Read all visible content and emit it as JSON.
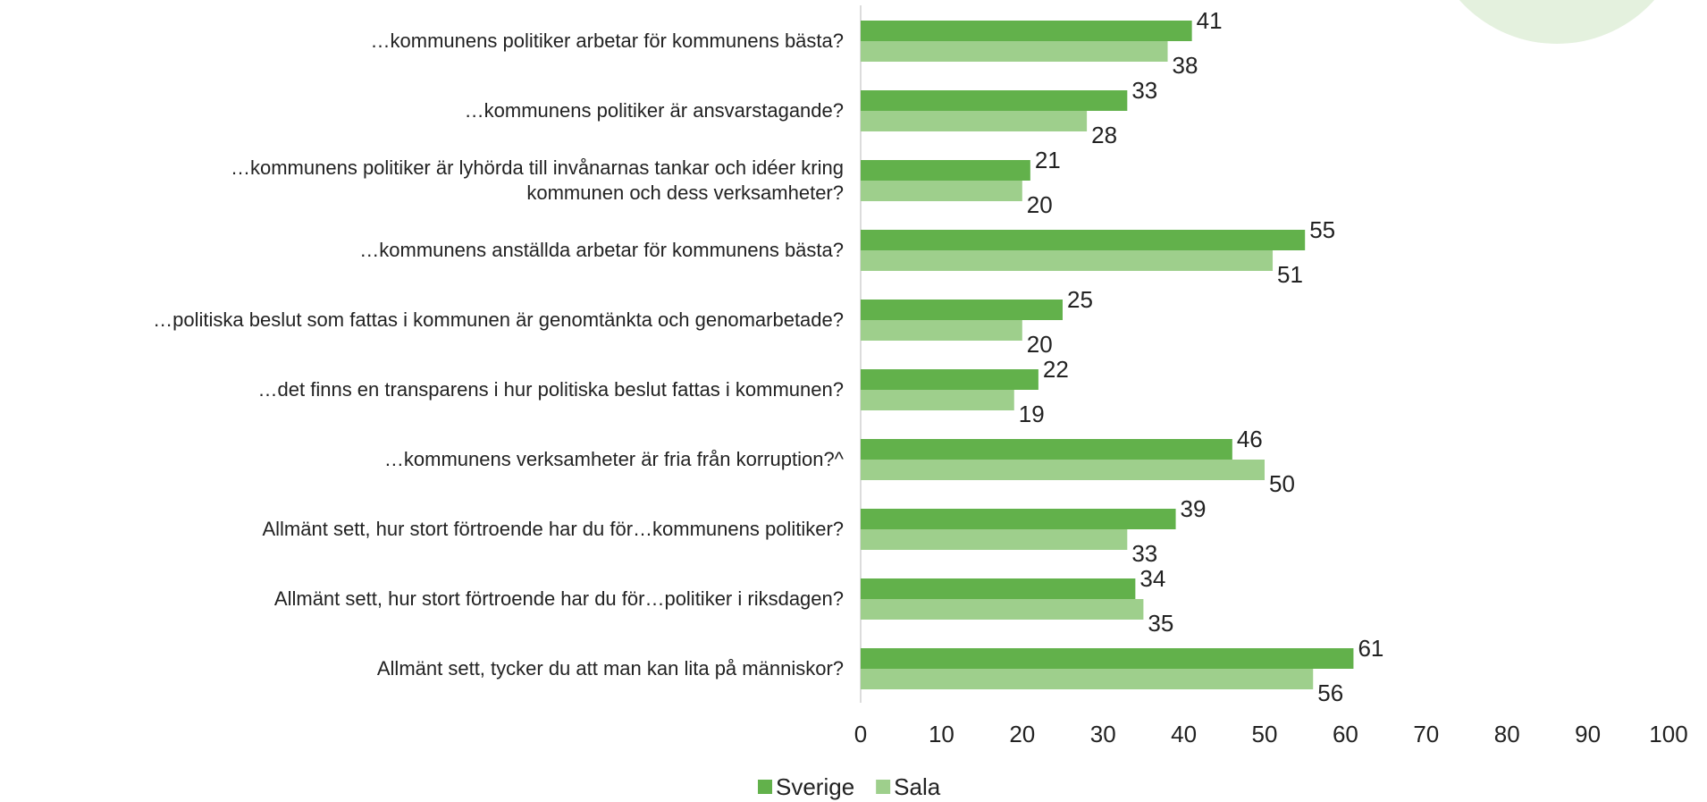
{
  "chart_data": {
    "type": "hbar",
    "categories": [
      "…kommunens politiker arbetar för kommunens bästa?",
      "…kommunens politiker är ansvarstagande?",
      "…kommunens politiker är lyhörda till invånarnas tankar och idéer kring\nkommunen och dess verksamheter?",
      "…kommunens anställda arbetar för kommunens bästa?",
      "…politiska beslut som fattas i kommunen är genomtänkta och genomarbetade?",
      "…det finns en transparens i hur politiska beslut fattas i kommunen?",
      "…kommunens verksamheter är fria från korruption?^",
      "Allmänt sett, hur stort förtroende har du för…kommunens politiker?",
      "Allmänt sett, hur stort förtroende har du för…politiker i riksdagen?",
      "Allmänt sett, tycker du att man kan lita på människor?"
    ],
    "series": [
      {
        "name": "Sverige",
        "color": "#62b14b",
        "values": [
          41,
          33,
          21,
          55,
          25,
          22,
          46,
          39,
          34,
          61
        ]
      },
      {
        "name": "Sala",
        "color": "#9ecf8c",
        "values": [
          38,
          28,
          20,
          51,
          20,
          19,
          50,
          33,
          35,
          56
        ]
      }
    ],
    "xlim": [
      0,
      100
    ],
    "xticks": [
      0,
      10,
      20,
      30,
      40,
      50,
      60,
      70,
      80,
      90,
      100
    ],
    "grid": false,
    "legend": "bottom"
  }
}
